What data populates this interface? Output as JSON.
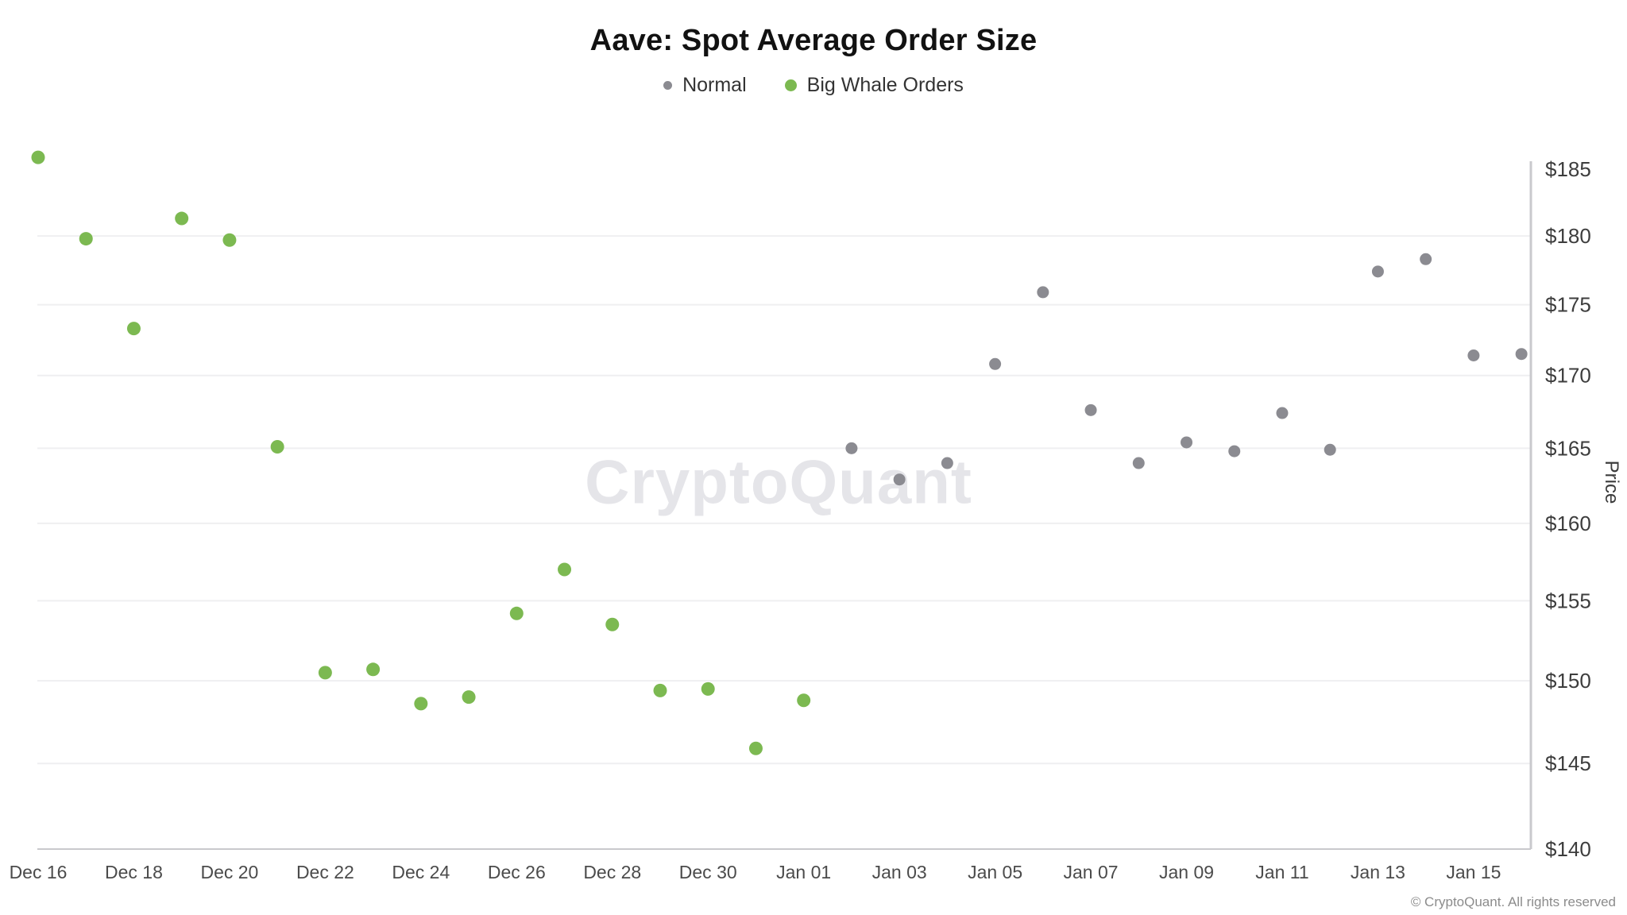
{
  "title": "Aave: Spot Average Order Size",
  "watermark": "CryptoQuant",
  "footer": "© CryptoQuant. All rights reserved",
  "legend": [
    {
      "label": "Normal",
      "color": "#8b8b91"
    },
    {
      "label": "Big Whale Orders",
      "color": "#7cb951"
    }
  ],
  "chart_data": {
    "type": "scatter",
    "title": "Aave: Spot Average Order Size",
    "xlabel": "",
    "ylabel": "Price",
    "y_scale": "log",
    "ylim": [
      140,
      187
    ],
    "y_tick_prefix": "$",
    "y_ticks": [
      140,
      145,
      150,
      155,
      160,
      165,
      170,
      175,
      180,
      185
    ],
    "grid": "horizontal",
    "legend_position": "top",
    "x_ticks": [
      {
        "day": 0,
        "label": "Dec 16"
      },
      {
        "day": 2,
        "label": "Dec 18"
      },
      {
        "day": 4,
        "label": "Dec 20"
      },
      {
        "day": 6,
        "label": "Dec 22"
      },
      {
        "day": 8,
        "label": "Dec 24"
      },
      {
        "day": 10,
        "label": "Dec 26"
      },
      {
        "day": 12,
        "label": "Dec 28"
      },
      {
        "day": 14,
        "label": "Dec 30"
      },
      {
        "day": 16,
        "label": "Jan 01"
      },
      {
        "day": 18,
        "label": "Jan 03"
      },
      {
        "day": 20,
        "label": "Jan 05"
      },
      {
        "day": 22,
        "label": "Jan 07"
      },
      {
        "day": 24,
        "label": "Jan 09"
      },
      {
        "day": 26,
        "label": "Jan 11"
      },
      {
        "day": 28,
        "label": "Jan 13"
      },
      {
        "day": 30,
        "label": "Jan 15"
      }
    ],
    "series": [
      {
        "name": "Big Whale Orders",
        "color": "#7cb951",
        "points": [
          {
            "date": "Dec 16",
            "day": 0,
            "value": 185.9
          },
          {
            "date": "Dec 17",
            "day": 1,
            "value": 179.8
          },
          {
            "date": "Dec 18",
            "day": 2,
            "value": 173.3
          },
          {
            "date": "Dec 19",
            "day": 3,
            "value": 181.3
          },
          {
            "date": "Dec 20",
            "day": 4,
            "value": 179.7
          },
          {
            "date": "Dec 21",
            "day": 5,
            "value": 165.1
          },
          {
            "date": "Dec 22",
            "day": 6,
            "value": 150.5
          },
          {
            "date": "Dec 23",
            "day": 7,
            "value": 150.7
          },
          {
            "date": "Dec 24",
            "day": 8,
            "value": 148.6
          },
          {
            "date": "Dec 25",
            "day": 9,
            "value": 149.0
          },
          {
            "date": "Dec 26",
            "day": 10,
            "value": 154.2
          },
          {
            "date": "Dec 27",
            "day": 11,
            "value": 157.0
          },
          {
            "date": "Dec 28",
            "day": 12,
            "value": 153.5
          },
          {
            "date": "Dec 29",
            "day": 13,
            "value": 149.4
          },
          {
            "date": "Dec 30",
            "day": 14,
            "value": 149.5
          },
          {
            "date": "Dec 31",
            "day": 15,
            "value": 145.9
          },
          {
            "date": "Jan 01",
            "day": 16,
            "value": 148.8
          }
        ]
      },
      {
        "name": "Normal",
        "color": "#8b8b91",
        "points": [
          {
            "date": "Jan 02",
            "day": 17,
            "value": 165.0
          },
          {
            "date": "Jan 03",
            "day": 18,
            "value": 162.9
          },
          {
            "date": "Jan 04",
            "day": 19,
            "value": 164.0
          },
          {
            "date": "Jan 05",
            "day": 20,
            "value": 170.8
          },
          {
            "date": "Jan 06",
            "day": 21,
            "value": 175.9
          },
          {
            "date": "Jan 07",
            "day": 22,
            "value": 167.6
          },
          {
            "date": "Jan 08",
            "day": 23,
            "value": 164.0
          },
          {
            "date": "Jan 09",
            "day": 24,
            "value": 165.4
          },
          {
            "date": "Jan 10",
            "day": 25,
            "value": 164.8
          },
          {
            "date": "Jan 11",
            "day": 26,
            "value": 167.4
          },
          {
            "date": "Jan 12",
            "day": 27,
            "value": 164.9
          },
          {
            "date": "Jan 13",
            "day": 28,
            "value": 177.4
          },
          {
            "date": "Jan 14",
            "day": 29,
            "value": 178.3
          },
          {
            "date": "Jan 15",
            "day": 30,
            "value": 171.4
          },
          {
            "date": "Jan 16",
            "day": 31,
            "value": 171.5
          }
        ]
      }
    ]
  }
}
